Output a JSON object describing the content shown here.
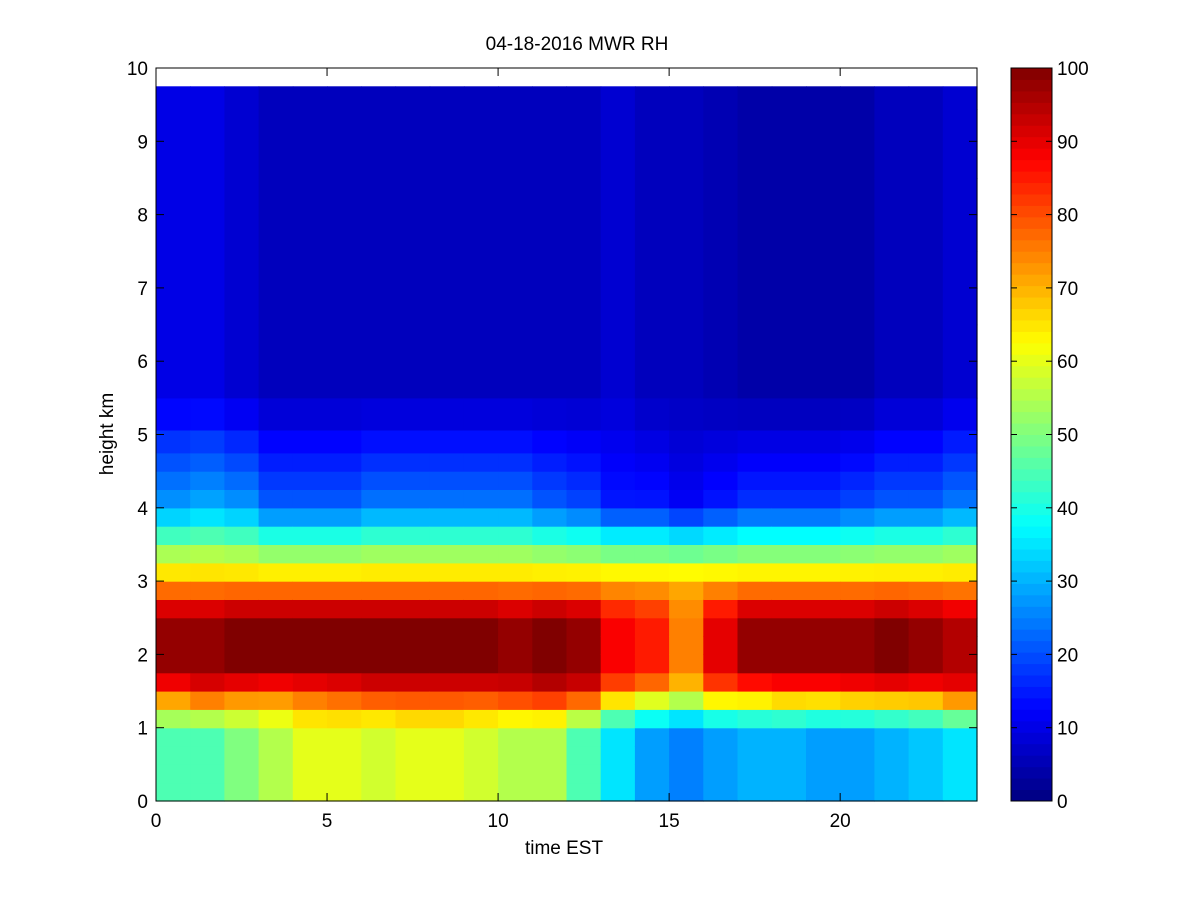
{
  "chart_data": {
    "type": "heatmap",
    "title": "04-18-2016 MWR RH",
    "xlabel": "time EST",
    "ylabel": "height km",
    "xlim": [
      0,
      24
    ],
    "ylim": [
      0,
      10
    ],
    "xticks": [
      0,
      5,
      10,
      15,
      20
    ],
    "yticks": [
      0,
      1,
      2,
      3,
      4,
      5,
      6,
      7,
      8,
      9,
      10
    ],
    "colorbar": {
      "range": [
        0,
        100
      ],
      "ticks": [
        0,
        10,
        20,
        30,
        40,
        50,
        60,
        70,
        80,
        90,
        100
      ],
      "colormap": "jet"
    },
    "grid": false,
    "time_hours": [
      0,
      1,
      2,
      3,
      4,
      5,
      6,
      7,
      8,
      9,
      10,
      11,
      12,
      13,
      14,
      15,
      16,
      17,
      18,
      19,
      20,
      21,
      22,
      23
    ],
    "height_km": [
      0.125,
      0.375,
      0.625,
      0.875,
      1.125,
      1.375,
      1.625,
      1.875,
      2.125,
      2.375,
      2.625,
      2.875,
      3.125,
      3.375,
      3.625,
      3.875,
      4.125,
      4.375,
      4.625,
      4.875,
      5.25,
      5.75,
      6.25,
      6.75,
      7.25,
      7.75,
      8.25,
      8.75,
      9.25,
      9.625
    ],
    "rh_profiles": [
      {
        "time": 0,
        "low": 45,
        "mid": 80,
        "peak": 98,
        "top": 28,
        "up": 10
      },
      {
        "time": 1,
        "low": 45,
        "mid": 85,
        "peak": 98,
        "top": 30,
        "up": 10
      },
      {
        "time": 2,
        "low": 50,
        "mid": 80,
        "peak": 100,
        "top": 28,
        "up": 8
      },
      {
        "time": 3,
        "low": 55,
        "mid": 78,
        "peak": 100,
        "top": 22,
        "up": 6
      },
      {
        "time": 4,
        "low": 60,
        "mid": 80,
        "peak": 100,
        "top": 22,
        "up": 6
      },
      {
        "time": 5,
        "low": 60,
        "mid": 82,
        "peak": 100,
        "top": 22,
        "up": 6
      },
      {
        "time": 6,
        "low": 58,
        "mid": 85,
        "peak": 100,
        "top": 25,
        "up": 6
      },
      {
        "time": 7,
        "low": 60,
        "mid": 85,
        "peak": 100,
        "top": 25,
        "up": 6
      },
      {
        "time": 8,
        "low": 60,
        "mid": 85,
        "peak": 100,
        "top": 25,
        "up": 6
      },
      {
        "time": 9,
        "low": 58,
        "mid": 85,
        "peak": 100,
        "top": 25,
        "up": 6
      },
      {
        "time": 10,
        "low": 55,
        "mid": 88,
        "peak": 98,
        "top": 25,
        "up": 6
      },
      {
        "time": 11,
        "low": 55,
        "mid": 90,
        "peak": 100,
        "top": 22,
        "up": 6
      },
      {
        "time": 12,
        "low": 45,
        "mid": 88,
        "peak": 98,
        "top": 20,
        "up": 6
      },
      {
        "time": 13,
        "low": 35,
        "mid": 75,
        "peak": 88,
        "top": 15,
        "up": 8
      },
      {
        "time": 14,
        "low": 28,
        "mid": 70,
        "peak": 85,
        "top": 15,
        "up": 6
      },
      {
        "time": 15,
        "low": 25,
        "mid": 65,
        "peak": 75,
        "top": 12,
        "up": 6
      },
      {
        "time": 16,
        "low": 28,
        "mid": 75,
        "peak": 90,
        "top": 15,
        "up": 5
      },
      {
        "time": 17,
        "low": 30,
        "mid": 75,
        "peak": 98,
        "top": 18,
        "up": 4
      },
      {
        "time": 18,
        "low": 30,
        "mid": 78,
        "peak": 98,
        "top": 18,
        "up": 4
      },
      {
        "time": 19,
        "low": 28,
        "mid": 78,
        "peak": 98,
        "top": 18,
        "up": 4
      },
      {
        "time": 20,
        "low": 28,
        "mid": 80,
        "peak": 98,
        "top": 20,
        "up": 4
      },
      {
        "time": 21,
        "low": 30,
        "mid": 80,
        "peak": 100,
        "top": 22,
        "up": 6
      },
      {
        "time": 22,
        "low": 32,
        "mid": 80,
        "peak": 98,
        "top": 22,
        "up": 6
      },
      {
        "time": 23,
        "low": 35,
        "mid": 85,
        "peak": 95,
        "top": 25,
        "up": 8
      }
    ]
  }
}
